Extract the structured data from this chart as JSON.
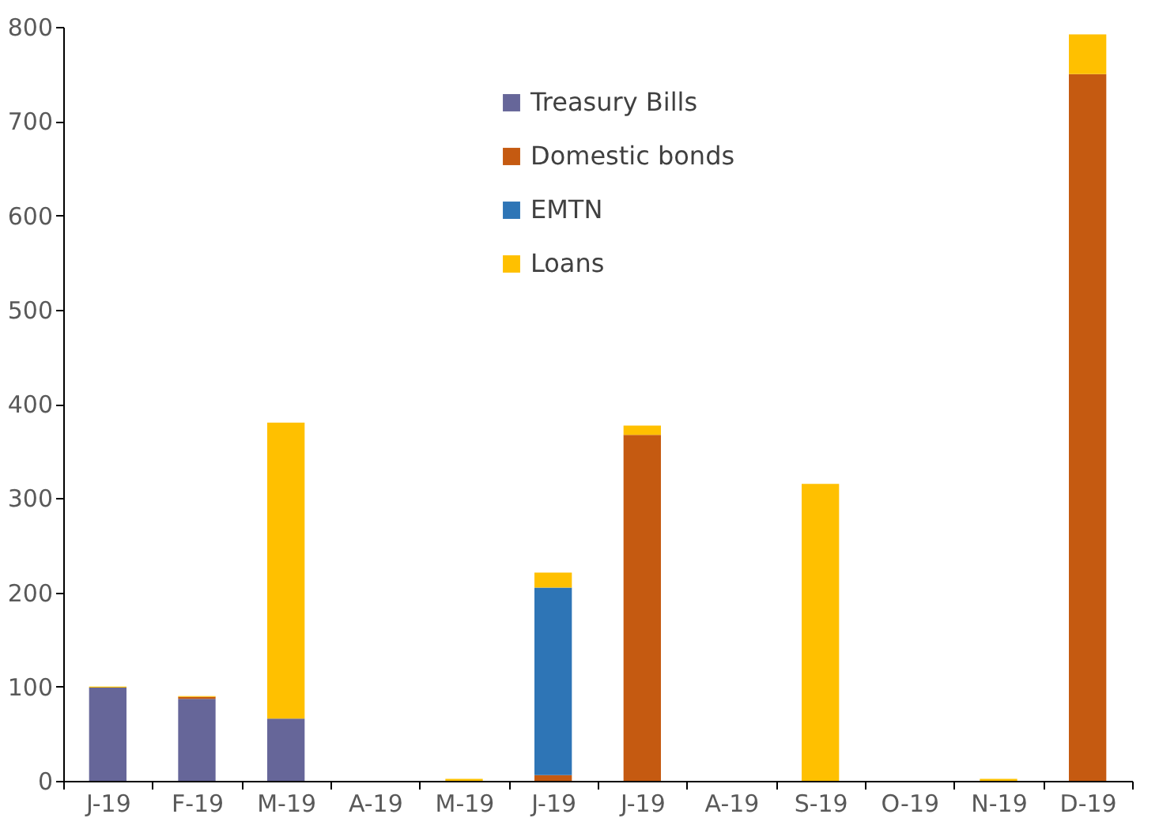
{
  "chart_data": {
    "type": "bar",
    "stacked": true,
    "categories": [
      "J-19",
      "F-19",
      "M-19",
      "A-19",
      "M-19",
      "J-19",
      "J-19",
      "A-19",
      "S-19",
      "O-19",
      "N-19",
      "D-19"
    ],
    "series": [
      {
        "name": "Treasury Bills",
        "color": "#666699",
        "values": [
          99,
          87,
          66,
          0,
          0,
          0,
          0,
          0,
          0,
          0,
          0,
          0
        ]
      },
      {
        "name": "Domestic bonds",
        "color": "#c55a11",
        "values": [
          0,
          2,
          0,
          0,
          0,
          6,
          367,
          0,
          0,
          0,
          0,
          750
        ]
      },
      {
        "name": "EMTN",
        "color": "#2e75b6",
        "values": [
          0,
          0,
          0,
          0,
          0,
          199,
          0,
          0,
          0,
          0,
          0,
          0
        ]
      },
      {
        "name": "Loans",
        "color": "#ffc000",
        "values": [
          1,
          1,
          314,
          0,
          2,
          16,
          10,
          0,
          315,
          0,
          2,
          42
        ]
      }
    ],
    "ylim": [
      0,
      800
    ],
    "yticks": [
      0,
      100,
      200,
      300,
      400,
      500,
      600,
      700,
      800
    ],
    "grid": false,
    "legend": "top"
  }
}
